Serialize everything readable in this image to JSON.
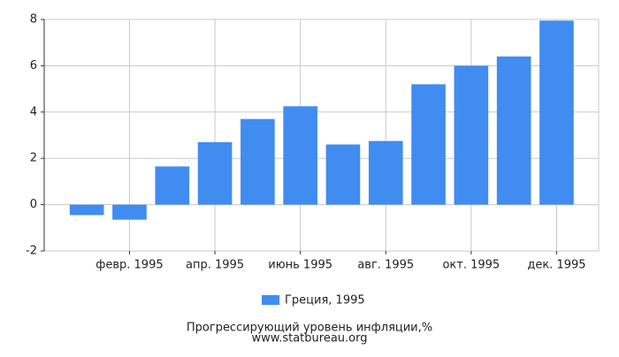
{
  "chart_data": {
    "type": "bar",
    "title": "Прогрессирующий уровень инфляции,%",
    "subtitle": "www.statbureau.org",
    "categories": [
      null,
      "февр. 1995",
      null,
      "апр. 1995",
      null,
      "июнь 1995",
      null,
      "авг. 1995",
      null,
      "окт. 1995",
      null,
      "дек. 1995"
    ],
    "series": [
      {
        "name": "Греция, 1995",
        "color": "#418cf0",
        "values": [
          -0.45,
          -0.65,
          1.65,
          2.7,
          3.7,
          4.25,
          2.6,
          2.75,
          5.2,
          6.0,
          6.4,
          7.95
        ]
      }
    ],
    "ylim": [
      -2,
      8
    ],
    "yticks": [
      -2,
      0,
      2,
      4,
      6,
      8
    ],
    "grid": true
  }
}
